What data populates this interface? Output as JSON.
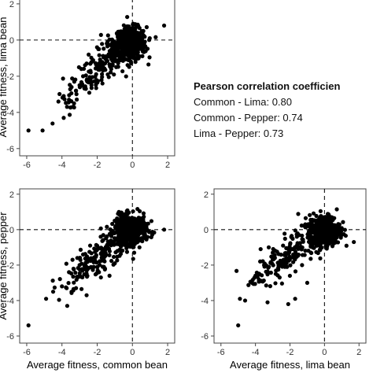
{
  "annotation": {
    "title": "Pearson correlation coefficien",
    "lines": [
      "Common - Lima: 0.80",
      "Common - Pepper: 0.74",
      "Lima - Pepper: 0.73"
    ]
  },
  "chart_data": [
    {
      "type": "scatter",
      "title": "",
      "xlabel": "",
      "ylabel": "Average fitness, lima bean",
      "xlim": [
        -6.4,
        2.4
      ],
      "ylim": [
        -6.4,
        2.3
      ],
      "xticks": [
        "-6",
        "-4",
        "-2",
        "0",
        "2"
      ],
      "yticks": [
        "-6",
        "-4",
        "-2",
        "0",
        "2"
      ],
      "reference_lines": {
        "x": 0,
        "y": 0,
        "style": "dashed"
      },
      "grid": false,
      "series": [
        {
          "points": [
            [
              -5.9,
              -5.0
            ],
            [
              -5.1,
              -5.0
            ],
            [
              -4.2,
              -3.4
            ],
            [
              -3.9,
              -4.3
            ],
            [
              -3.6,
              -3.3
            ],
            [
              -3.9,
              -3.1
            ],
            [
              -3.4,
              -3.7
            ],
            [
              -3.2,
              -2.8
            ],
            [
              -3.0,
              -2.5
            ],
            [
              -2.8,
              -2.0
            ],
            [
              -2.5,
              -2.2
            ],
            [
              -2.9,
              -1.6
            ],
            [
              -2.3,
              -1.2
            ],
            [
              -2.0,
              -1.5
            ],
            [
              -1.9,
              -0.5
            ],
            [
              -1.5,
              -0.9
            ],
            [
              -1.7,
              -2.4
            ],
            [
              -1.2,
              -0.3
            ],
            [
              -0.9,
              -0.8
            ],
            [
              -2.6,
              -1.3
            ],
            [
              -3.3,
              -2.3
            ],
            [
              -1.4,
              -1.9
            ],
            [
              1.8,
              0.8
            ],
            [
              0.2,
              -1.0
            ]
          ],
          "dense_cloud": {
            "center": [
              -0.1,
              -0.2
            ],
            "spread": [
              0.45,
              0.45
            ],
            "count": 450
          },
          "diagonal_band": {
            "from": [
              -4.2,
              -3.6
            ],
            "to": [
              -0.3,
              -0.2
            ],
            "count": 200
          }
        }
      ]
    },
    {
      "type": "scatter",
      "title": "",
      "xlabel": "Average fitness, common bean",
      "ylabel": "Average fitness, pepper",
      "xlim": [
        -6.4,
        2.4
      ],
      "ylim": [
        -6.4,
        2.3
      ],
      "xticks": [
        "-6",
        "-4",
        "-2",
        "0",
        "2"
      ],
      "yticks": [
        "-6",
        "-4",
        "-2",
        "0",
        "2"
      ],
      "reference_lines": {
        "x": 0,
        "y": 0,
        "style": "dashed"
      },
      "grid": false,
      "series": [
        {
          "points": [
            [
              -5.9,
              -5.4
            ],
            [
              -4.9,
              -3.9
            ],
            [
              -4.5,
              -3.5
            ],
            [
              -4.0,
              -3.2
            ],
            [
              -3.7,
              -4.3
            ],
            [
              -3.6,
              -2.4
            ],
            [
              -3.2,
              -3.3
            ],
            [
              -3.0,
              -2.0
            ],
            [
              -2.8,
              -1.4
            ],
            [
              -2.4,
              -0.9
            ],
            [
              -2.2,
              -2.1
            ],
            [
              -1.8,
              -0.4
            ],
            [
              -1.5,
              -1.4
            ],
            [
              -1.3,
              -2.6
            ],
            [
              -0.9,
              -0.6
            ],
            [
              -2.6,
              -3.7
            ],
            [
              1.8,
              0.0
            ],
            [
              0.1,
              -1.3
            ],
            [
              -3.4,
              -1.7
            ],
            [
              -1.0,
              -1.9
            ]
          ],
          "dense_cloud": {
            "center": [
              -0.1,
              0.0
            ],
            "spread": [
              0.45,
              0.4
            ],
            "count": 450
          },
          "diagonal_band": {
            "from": [
              -4.4,
              -3.6
            ],
            "to": [
              -0.3,
              -0.2
            ],
            "count": 200
          }
        }
      ]
    },
    {
      "type": "scatter",
      "title": "",
      "xlabel": "Average fitness, lima bean",
      "ylabel": "",
      "xlim": [
        -6.4,
        2.4
      ],
      "ylim": [
        -6.4,
        2.3
      ],
      "xticks": [
        "-6",
        "-4",
        "-2",
        "0",
        "2"
      ],
      "yticks": [
        "-6",
        "-4",
        "-2",
        "0",
        "2"
      ],
      "reference_lines": {
        "x": 0,
        "y": 0,
        "style": "dashed"
      },
      "grid": false,
      "series": [
        {
          "points": [
            [
              -5.0,
              -5.4
            ],
            [
              -4.9,
              -3.9
            ],
            [
              -4.6,
              -4.0
            ],
            [
              -4.2,
              -3.0
            ],
            [
              -4.0,
              -2.6
            ],
            [
              -3.5,
              -2.0
            ],
            [
              -3.0,
              -1.3
            ],
            [
              -3.3,
              -4.1
            ],
            [
              -2.6,
              -2.7
            ],
            [
              -2.4,
              -0.9
            ],
            [
              -2.0,
              -1.6
            ],
            [
              -1.7,
              -3.9
            ],
            [
              -1.6,
              -0.4
            ],
            [
              -1.3,
              -2.0
            ],
            [
              -0.8,
              -0.7
            ],
            [
              -1.0,
              -3.0
            ],
            [
              1.7,
              -0.7
            ],
            [
              1.0,
              -0.3
            ],
            [
              -3.7,
              -1.1
            ],
            [
              -2.1,
              -4.2
            ]
          ],
          "dense_cloud": {
            "center": [
              0.0,
              0.0
            ],
            "spread": [
              0.45,
              0.42
            ],
            "count": 450
          },
          "diagonal_band": {
            "from": [
              -4.4,
              -3.2
            ],
            "to": [
              -0.3,
              -0.2
            ],
            "count": 200
          }
        }
      ]
    }
  ]
}
